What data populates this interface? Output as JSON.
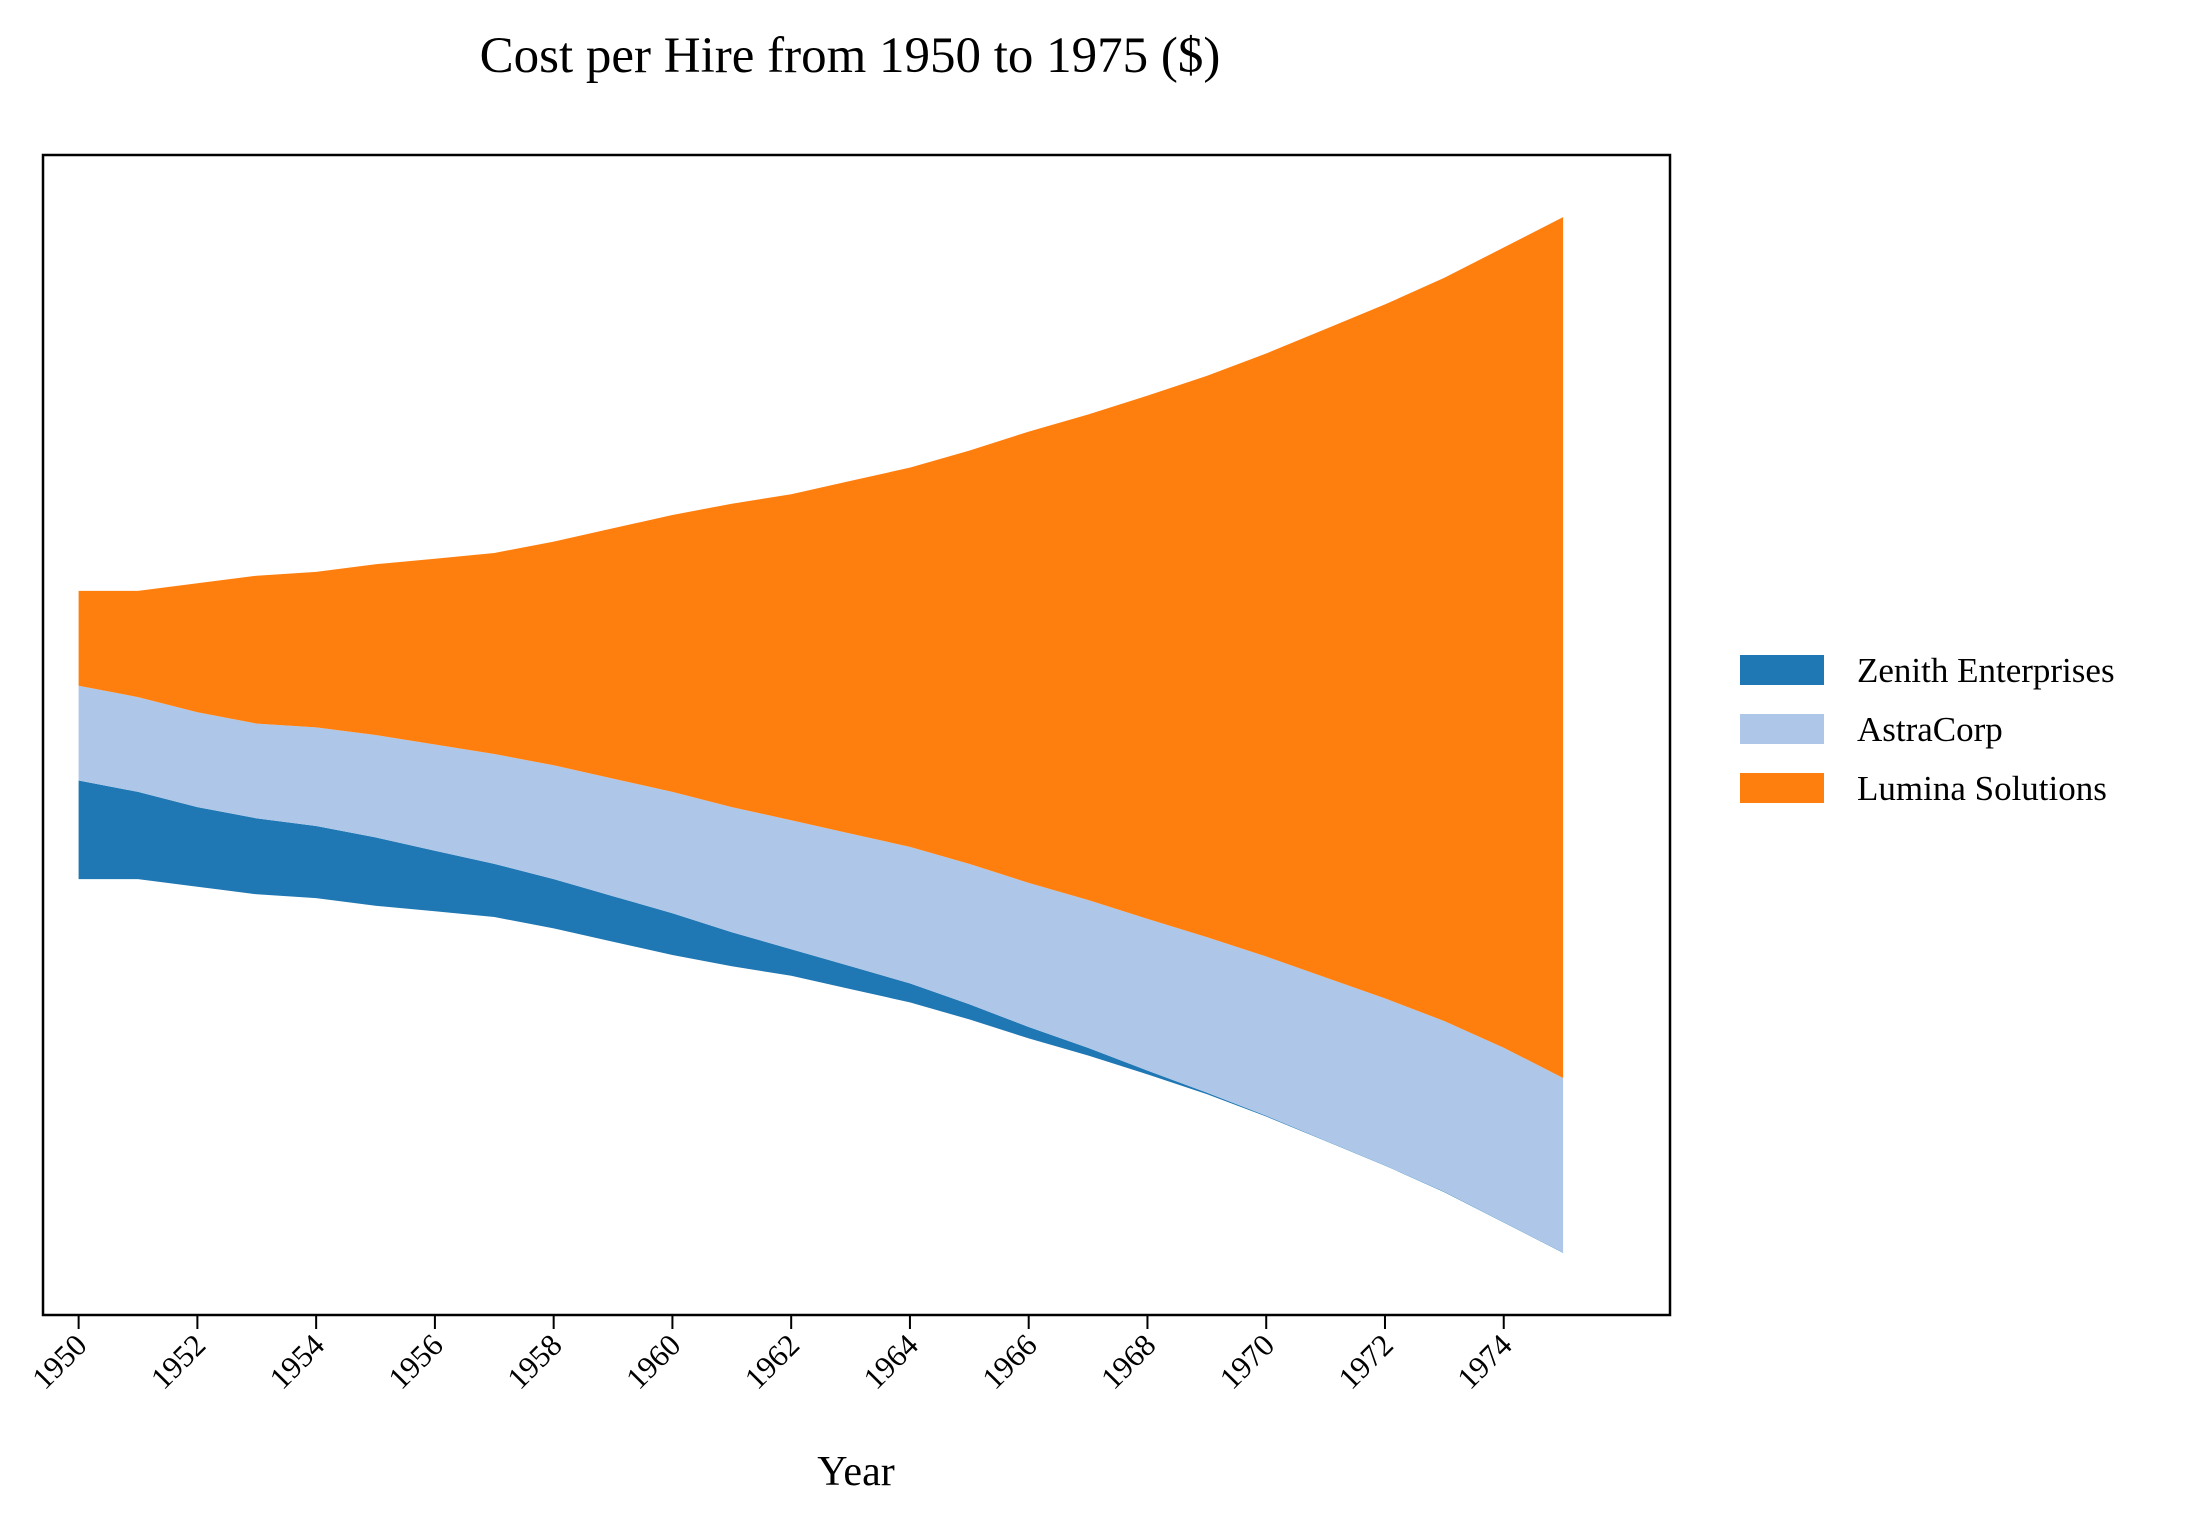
{
  "chart_data": {
    "type": "area",
    "stacked": true,
    "baseline": "symmetric",
    "title": "Cost per Hire from 1950 to 1975 ($)",
    "xlabel": "Year",
    "ylabel": "",
    "x": [
      1950,
      1951,
      1952,
      1953,
      1954,
      1955,
      1956,
      1957,
      1958,
      1959,
      1960,
      1961,
      1962,
      1963,
      1964,
      1965,
      1966,
      1967,
      1968,
      1969,
      1970,
      1971,
      1972,
      1973,
      1974,
      1975
    ],
    "xticks": [
      1950,
      1952,
      1954,
      1956,
      1958,
      1960,
      1962,
      1964,
      1966,
      1968,
      1970,
      1972,
      1974
    ],
    "xtick_labels": [
      "1950",
      "1952",
      "1954",
      "1956",
      "1958",
      "1960",
      "1962",
      "1964",
      "1966",
      "1968",
      "1970",
      "1972",
      "1974"
    ],
    "xlim": [
      1949.4,
      1976.8
    ],
    "yticks_visible": false,
    "grid": false,
    "legend_position": "right",
    "series": [
      {
        "name": "Zenith Enterprises",
        "color": "#1f77b4",
        "values": [
          1300,
          1150,
          1050,
          1000,
          950,
          900,
          800,
          700,
          650,
          600,
          550,
          450,
          350,
          300,
          250,
          200,
          150,
          100,
          50,
          20,
          10,
          5,
          5,
          5,
          5,
          5
        ]
      },
      {
        "name": "AstraCorp",
        "color": "#aec7e8",
        "values": [
          1250,
          1250,
          1250,
          1250,
          1300,
          1350,
          1400,
          1450,
          1500,
          1550,
          1600,
          1650,
          1700,
          1750,
          1800,
          1850,
          1900,
          1950,
          2000,
          2050,
          2100,
          2150,
          2200,
          2250,
          2300,
          2300
        ]
      },
      {
        "name": "Lumina Solutions",
        "color": "#ff7f0e",
        "values": [
          1250,
          1400,
          1700,
          1950,
          2050,
          2250,
          2450,
          2650,
          2950,
          3300,
          3650,
          4000,
          4300,
          4650,
          5000,
          5450,
          5950,
          6400,
          6900,
          7400,
          7950,
          8550,
          9150,
          9800,
          10550,
          11350
        ]
      }
    ]
  }
}
